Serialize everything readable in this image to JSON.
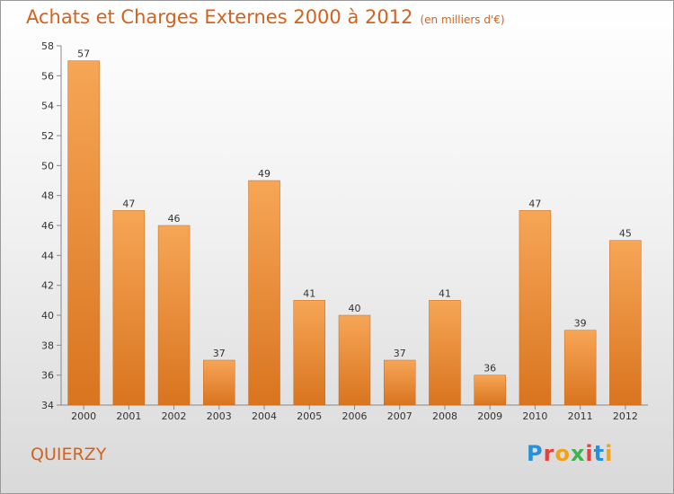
{
  "header": {
    "title": "Achats et Charges Externes 2000 à 2012",
    "subtitle": "(en milliers d'€)"
  },
  "footer": {
    "place": "QUIERZY",
    "logo": {
      "letters": [
        "P",
        "r",
        "o",
        "x",
        "i",
        "t",
        "i"
      ],
      "colors": [
        "#2a8fd6",
        "#e8403c",
        "#f2a21a",
        "#3fb34f",
        "#e8403c",
        "#2a8fd6",
        "#f2a21a"
      ]
    }
  },
  "colors": {
    "bar_light": "#f6a656",
    "bar_dark": "#d9741f",
    "text_accent": "#d4621c"
  },
  "chart_data": {
    "type": "bar",
    "categories": [
      "2000",
      "2001",
      "2002",
      "2003",
      "2004",
      "2005",
      "2006",
      "2007",
      "2008",
      "2009",
      "2010",
      "2011",
      "2012"
    ],
    "values": [
      57,
      47,
      46,
      37,
      49,
      41,
      40,
      37,
      41,
      36,
      47,
      39,
      45
    ],
    "ylim": [
      34,
      58
    ],
    "yticks": [
      34,
      36,
      38,
      40,
      42,
      44,
      46,
      48,
      50,
      52,
      54,
      56,
      58
    ],
    "grid": false,
    "legend": "none"
  }
}
